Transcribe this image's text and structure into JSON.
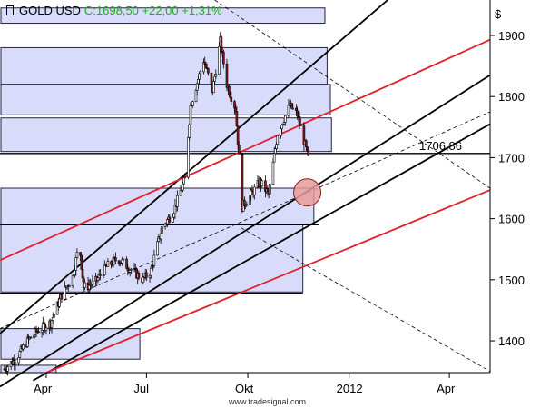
{
  "header": {
    "instrument": "GOLD USD",
    "quote": "C:1698,50 +22,00 +1,31%",
    "icon": "candlestick-square-icon"
  },
  "watermark": "www.tradesignal.com",
  "colors": {
    "up": "#ffffff",
    "down": "#8b1a1a",
    "candle_outline": "#000000",
    "trend_black": "#000000",
    "trend_red": "#e0202a",
    "volume_box_fill": "#b9bdf5",
    "volume_box_edge": "#222244",
    "highlight_circle": "#e99a9a",
    "quote_green": "#22aa22"
  },
  "chart_data": {
    "type": "candlestick",
    "title": "GOLD USD",
    "currency_label": "$",
    "last_close_label": "1706,86",
    "ylim": [
      1348,
      1958
    ],
    "yticks": [
      1400,
      1500,
      1600,
      1700,
      1800,
      1900
    ],
    "ytick_labels": [
      "1400",
      "1500",
      "1600",
      "1700",
      "1800",
      "1900"
    ],
    "xrange": [
      "2011-02-18",
      "2012-05-08"
    ],
    "xticks": [
      {
        "label": "Apr",
        "date": "2011-04-01"
      },
      {
        "label": "Jul",
        "date": "2011-07-01"
      },
      {
        "label": "Okt",
        "date": "2011-10-01"
      },
      {
        "label": "2012",
        "date": "2012-01-01"
      },
      {
        "label": "Apr",
        "date": "2012-04-01"
      }
    ],
    "close_series": [
      {
        "date": "2011-02-22",
        "close": 1354
      },
      {
        "date": "2011-03-05",
        "close": 1372
      },
      {
        "date": "2011-03-15",
        "close": 1400
      },
      {
        "date": "2011-03-25",
        "close": 1418
      },
      {
        "date": "2011-04-05",
        "close": 1430
      },
      {
        "date": "2011-04-15",
        "close": 1475
      },
      {
        "date": "2011-04-25",
        "close": 1505
      },
      {
        "date": "2011-05-01",
        "close": 1560
      },
      {
        "date": "2011-05-05",
        "close": 1488
      },
      {
        "date": "2011-05-15",
        "close": 1495
      },
      {
        "date": "2011-05-25",
        "close": 1520
      },
      {
        "date": "2011-06-05",
        "close": 1535
      },
      {
        "date": "2011-06-15",
        "close": 1520
      },
      {
        "date": "2011-06-28",
        "close": 1500
      },
      {
        "date": "2011-07-05",
        "close": 1515
      },
      {
        "date": "2011-07-15",
        "close": 1585
      },
      {
        "date": "2011-07-25",
        "close": 1610
      },
      {
        "date": "2011-08-05",
        "close": 1665
      },
      {
        "date": "2011-08-10",
        "close": 1785
      },
      {
        "date": "2011-08-22",
        "close": 1860
      },
      {
        "date": "2011-08-30",
        "close": 1810
      },
      {
        "date": "2011-09-06",
        "close": 1890
      },
      {
        "date": "2011-09-12",
        "close": 1820
      },
      {
        "date": "2011-09-20",
        "close": 1780
      },
      {
        "date": "2011-09-26",
        "close": 1620
      },
      {
        "date": "2011-10-04",
        "close": 1640
      },
      {
        "date": "2011-10-12",
        "close": 1660
      },
      {
        "date": "2011-10-20",
        "close": 1640
      },
      {
        "date": "2011-10-28",
        "close": 1740
      },
      {
        "date": "2011-11-08",
        "close": 1785
      },
      {
        "date": "2011-11-15",
        "close": 1770
      },
      {
        "date": "2011-11-25",
        "close": 1698.5
      }
    ],
    "trend_lines": [
      {
        "color": "black",
        "from": {
          "date": "2011-02-18",
          "price": 1412
        },
        "to": {
          "date": "2012-02-05",
          "price": 1958
        }
      },
      {
        "color": "black",
        "from": {
          "date": "2011-02-18",
          "price": 1325
        },
        "to": {
          "date": "2012-05-08",
          "price": 1835
        }
      },
      {
        "color": "black",
        "from": {
          "date": "2011-03-20",
          "price": 1335
        },
        "to": {
          "date": "2012-05-08",
          "price": 1755
        }
      },
      {
        "color": "red",
        "from": {
          "date": "2011-02-18",
          "price": 1532
        },
        "to": {
          "date": "2012-05-08",
          "price": 1893
        }
      },
      {
        "color": "red",
        "from": {
          "date": "2011-04-01",
          "price": 1348
        },
        "to": {
          "date": "2012-05-08",
          "price": 1647
        }
      },
      {
        "color": "black",
        "style": "dashed",
        "from": {
          "date": "2011-02-18",
          "price": 1420
        },
        "to": {
          "date": "2012-05-08",
          "price": 1775
        }
      },
      {
        "color": "black",
        "style": "dashed",
        "from": {
          "date": "2011-09-01",
          "price": 1958
        },
        "to": {
          "date": "2012-05-08",
          "price": 1650
        }
      },
      {
        "color": "black",
        "style": "dashed",
        "from": {
          "date": "2011-09-25",
          "price": 1585
        },
        "to": {
          "date": "2012-05-08",
          "price": 1350
        }
      }
    ],
    "horizontal_lines": [
      {
        "price": 1706.86,
        "from": "2011-02-18",
        "to": "2012-05-08"
      },
      {
        "price": 1590,
        "from": "2011-02-18",
        "to": "2011-12-05"
      },
      {
        "price": 1478,
        "from": "2011-02-18",
        "to": "2011-11-20"
      }
    ],
    "volume_profile": [
      {
        "low": 1920,
        "high": 1945,
        "end": "2011-12-10"
      },
      {
        "low": 1820,
        "high": 1880,
        "end": "2011-12-12"
      },
      {
        "low": 1770,
        "high": 1820,
        "end": "2011-12-15"
      },
      {
        "low": 1710,
        "high": 1765,
        "end": "2011-12-16"
      },
      {
        "low": 1590,
        "high": 1650,
        "end": "2011-11-30"
      },
      {
        "low": 1480,
        "high": 1590,
        "end": "2011-11-20"
      },
      {
        "low": 1370,
        "high": 1420,
        "end": "2011-06-25"
      },
      {
        "low": 1348,
        "high": 1360,
        "end": "2011-04-10"
      }
    ],
    "highlight": {
      "date": "2011-11-24",
      "price": 1643
    }
  }
}
